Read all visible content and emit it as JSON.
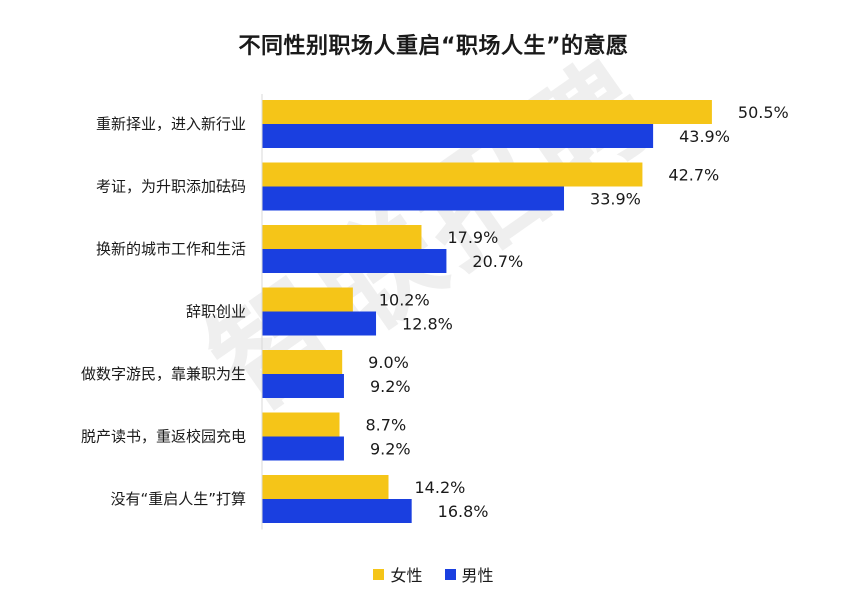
{
  "colors": {
    "female": "#f5c518",
    "male": "#1a3fe0",
    "axis": "#d9d9d9"
  },
  "watermark": "智联招聘",
  "chart_data": {
    "type": "bar",
    "orientation": "horizontal",
    "title": "不同性别职场人重启“职场人生”的意愿",
    "categories": [
      "重新择业，进入新行业",
      "考证，为升职添加砝码",
      "换新的城市工作和生活",
      "辞职创业",
      "做数字游民，靠兼职为生",
      "脱产读书，重返校园充电",
      "没有“重启人生”打算"
    ],
    "series": [
      {
        "name": "女性",
        "values": [
          50.5,
          42.7,
          17.9,
          10.2,
          9.0,
          8.7,
          14.2
        ],
        "labels": [
          "50.5%",
          "42.7%",
          "17.9%",
          "10.2%",
          "9.0%",
          "8.7%",
          "14.2%"
        ]
      },
      {
        "name": "男性",
        "values": [
          43.9,
          33.9,
          20.7,
          12.8,
          9.2,
          9.2,
          16.8
        ],
        "labels": [
          "43.9%",
          "33.9%",
          "20.7%",
          "12.8%",
          "9.2%",
          "9.2%",
          "16.8%"
        ]
      }
    ],
    "xlim": [
      0,
      55
    ],
    "legend_position": "bottom-center",
    "grid": false
  }
}
